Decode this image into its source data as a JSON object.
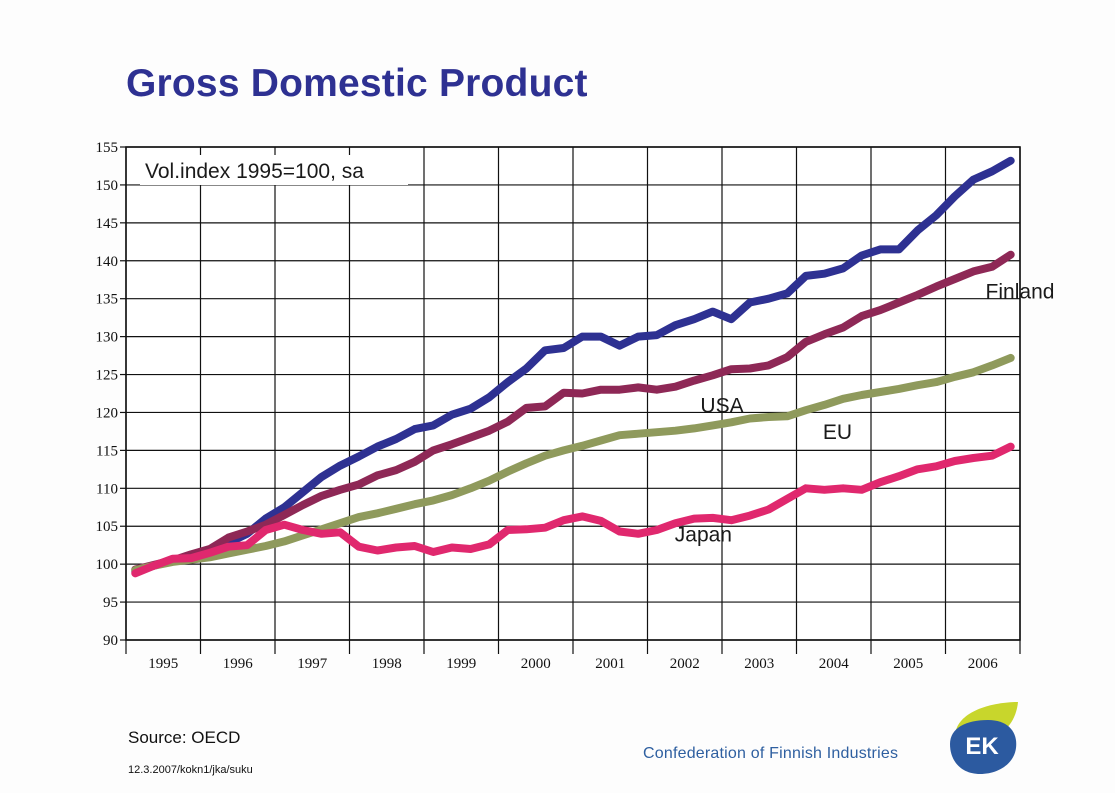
{
  "header": {
    "title": "Gross Domestic Product"
  },
  "footer": {
    "source": "Source: OECD",
    "footnote": "12.3.2007/kokn1/jka/suku",
    "organization": "Confederation of Finnish Industries",
    "logo_text": "EK"
  },
  "chart_data": {
    "type": "line",
    "title": "",
    "xlabel": "",
    "ylabel": "",
    "annotation": "Vol.index 1995=100, sa",
    "x_categories": [
      "1995",
      "1996",
      "1997",
      "1998",
      "1999",
      "2000",
      "2001",
      "2002",
      "2003",
      "2004",
      "2005",
      "2006"
    ],
    "x_range": [
      1995.0,
      2007.0
    ],
    "ylim": [
      90,
      155
    ],
    "yticks": [
      90,
      95,
      100,
      105,
      110,
      115,
      120,
      125,
      130,
      135,
      140,
      145,
      150,
      155
    ],
    "grid": true,
    "legend": "inline labels",
    "series": [
      {
        "name": "Finland",
        "color": "#2e3192",
        "label_at": [
          2007.0,
          135.0
        ],
        "points": [
          [
            1995.125,
            99
          ],
          [
            1995.375,
            99.8
          ],
          [
            1995.625,
            100.5
          ],
          [
            1995.875,
            101
          ],
          [
            1996.125,
            101.5
          ],
          [
            1996.375,
            102.8
          ],
          [
            1996.625,
            104
          ],
          [
            1996.875,
            106
          ],
          [
            1997.125,
            107.5
          ],
          [
            1997.375,
            109.5
          ],
          [
            1997.625,
            111.5
          ],
          [
            1997.875,
            113
          ],
          [
            1998.125,
            114.2
          ],
          [
            1998.375,
            115.5
          ],
          [
            1998.625,
            116.5
          ],
          [
            1998.875,
            117.8
          ],
          [
            1999.125,
            118.3
          ],
          [
            1999.375,
            119.7
          ],
          [
            1999.625,
            120.5
          ],
          [
            1999.875,
            122
          ],
          [
            2000.125,
            124
          ],
          [
            2000.375,
            125.8
          ],
          [
            2000.625,
            128.2
          ],
          [
            2000.875,
            128.5
          ],
          [
            2001.125,
            130
          ],
          [
            2001.375,
            130
          ],
          [
            2001.625,
            128.8
          ],
          [
            2001.875,
            130
          ],
          [
            2002.125,
            130.2
          ],
          [
            2002.375,
            131.5
          ],
          [
            2002.625,
            132.3
          ],
          [
            2002.875,
            133.3
          ],
          [
            2003.125,
            132.3
          ],
          [
            2003.375,
            134.5
          ],
          [
            2003.625,
            135
          ],
          [
            2003.875,
            135.7
          ],
          [
            2004.125,
            138
          ],
          [
            2004.375,
            138.3
          ],
          [
            2004.625,
            139
          ],
          [
            2004.875,
            140.7
          ],
          [
            2005.125,
            141.5
          ],
          [
            2005.375,
            141.5
          ],
          [
            2005.625,
            144
          ],
          [
            2005.875,
            146
          ],
          [
            2006.125,
            148.5
          ],
          [
            2006.375,
            150.7
          ],
          [
            2006.625,
            151.8
          ],
          [
            2006.875,
            153.2
          ]
        ]
      },
      {
        "name": "USA",
        "color": "#8e2856",
        "label_at": [
          2003.0,
          120.0
        ],
        "points": [
          [
            1995.125,
            99.3
          ],
          [
            1995.375,
            99.9
          ],
          [
            1995.625,
            100.5
          ],
          [
            1995.875,
            101.3
          ],
          [
            1996.125,
            102
          ],
          [
            1996.375,
            103.5
          ],
          [
            1996.625,
            104.3
          ],
          [
            1996.875,
            105.2
          ],
          [
            1997.125,
            106.5
          ],
          [
            1997.375,
            107.8
          ],
          [
            1997.625,
            109
          ],
          [
            1997.875,
            109.8
          ],
          [
            1998.125,
            110.5
          ],
          [
            1998.375,
            111.7
          ],
          [
            1998.625,
            112.4
          ],
          [
            1998.875,
            113.5
          ],
          [
            1999.125,
            115
          ],
          [
            1999.375,
            115.8
          ],
          [
            1999.625,
            116.7
          ],
          [
            1999.875,
            117.6
          ],
          [
            2000.125,
            118.8
          ],
          [
            2000.375,
            120.6
          ],
          [
            2000.625,
            120.8
          ],
          [
            2000.875,
            122.6
          ],
          [
            2001.125,
            122.5
          ],
          [
            2001.375,
            123
          ],
          [
            2001.625,
            123
          ],
          [
            2001.875,
            123.3
          ],
          [
            2002.125,
            123
          ],
          [
            2002.375,
            123.4
          ],
          [
            2002.625,
            124.2
          ],
          [
            2002.875,
            124.9
          ],
          [
            2003.125,
            125.7
          ],
          [
            2003.375,
            125.8
          ],
          [
            2003.625,
            126.2
          ],
          [
            2003.875,
            127.3
          ],
          [
            2004.125,
            129.3
          ],
          [
            2004.375,
            130.3
          ],
          [
            2004.625,
            131.2
          ],
          [
            2004.875,
            132.7
          ],
          [
            2005.125,
            133.5
          ],
          [
            2005.375,
            134.5
          ],
          [
            2005.625,
            135.5
          ],
          [
            2005.875,
            136.6
          ],
          [
            2006.125,
            137.6
          ],
          [
            2006.375,
            138.6
          ],
          [
            2006.625,
            139.2
          ],
          [
            2006.875,
            140.8
          ]
        ]
      },
      {
        "name": "EU",
        "color": "#8f9a5c",
        "label_at": [
          2004.55,
          116.5
        ],
        "points": [
          [
            1995.125,
            99.2
          ],
          [
            1995.375,
            99.8
          ],
          [
            1995.625,
            100.3
          ],
          [
            1995.875,
            100.6
          ],
          [
            1996.125,
            100.9
          ],
          [
            1996.375,
            101.4
          ],
          [
            1996.625,
            101.9
          ],
          [
            1996.875,
            102.4
          ],
          [
            1997.125,
            103
          ],
          [
            1997.375,
            103.8
          ],
          [
            1997.625,
            104.6
          ],
          [
            1997.875,
            105.4
          ],
          [
            1998.125,
            106.2
          ],
          [
            1998.375,
            106.7
          ],
          [
            1998.625,
            107.3
          ],
          [
            1998.875,
            107.9
          ],
          [
            1999.125,
            108.4
          ],
          [
            1999.375,
            109.1
          ],
          [
            1999.625,
            110
          ],
          [
            1999.875,
            111
          ],
          [
            2000.125,
            112.2
          ],
          [
            2000.375,
            113.3
          ],
          [
            2000.625,
            114.3
          ],
          [
            2000.875,
            115
          ],
          [
            2001.125,
            115.6
          ],
          [
            2001.375,
            116.3
          ],
          [
            2001.625,
            117
          ],
          [
            2001.875,
            117.2
          ],
          [
            2002.125,
            117.4
          ],
          [
            2002.375,
            117.6
          ],
          [
            2002.625,
            117.9
          ],
          [
            2002.875,
            118.3
          ],
          [
            2003.125,
            118.7
          ],
          [
            2003.375,
            119.2
          ],
          [
            2003.625,
            119.4
          ],
          [
            2003.875,
            119.5
          ],
          [
            2004.125,
            120.3
          ],
          [
            2004.375,
            121
          ],
          [
            2004.625,
            121.8
          ],
          [
            2004.875,
            122.3
          ],
          [
            2005.125,
            122.7
          ],
          [
            2005.375,
            123.1
          ],
          [
            2005.625,
            123.6
          ],
          [
            2005.875,
            124
          ],
          [
            2006.125,
            124.7
          ],
          [
            2006.375,
            125.3
          ],
          [
            2006.625,
            126.2
          ],
          [
            2006.875,
            127.2
          ]
        ]
      },
      {
        "name": "Japan",
        "color": "#e0286e",
        "label_at": [
          2002.75,
          103.0
        ],
        "points": [
          [
            1995.125,
            98.8
          ],
          [
            1995.375,
            99.8
          ],
          [
            1995.625,
            100.7
          ],
          [
            1995.875,
            100.8
          ],
          [
            1996.125,
            101.5
          ],
          [
            1996.375,
            102.3
          ],
          [
            1996.625,
            102.5
          ],
          [
            1996.875,
            104.5
          ],
          [
            1997.125,
            105.2
          ],
          [
            1997.375,
            104.5
          ],
          [
            1997.625,
            104
          ],
          [
            1997.875,
            104.2
          ],
          [
            1998.125,
            102.3
          ],
          [
            1998.375,
            101.8
          ],
          [
            1998.625,
            102.2
          ],
          [
            1998.875,
            102.4
          ],
          [
            1999.125,
            101.6
          ],
          [
            1999.375,
            102.2
          ],
          [
            1999.625,
            102
          ],
          [
            1999.875,
            102.6
          ],
          [
            2000.125,
            104.5
          ],
          [
            2000.375,
            104.6
          ],
          [
            2000.625,
            104.8
          ],
          [
            2000.875,
            105.8
          ],
          [
            2001.125,
            106.3
          ],
          [
            2001.375,
            105.7
          ],
          [
            2001.625,
            104.3
          ],
          [
            2001.875,
            104
          ],
          [
            2002.125,
            104.5
          ],
          [
            2002.375,
            105.4
          ],
          [
            2002.625,
            106
          ],
          [
            2002.875,
            106.1
          ],
          [
            2003.125,
            105.8
          ],
          [
            2003.375,
            106.4
          ],
          [
            2003.625,
            107.2
          ],
          [
            2003.875,
            108.6
          ],
          [
            2004.125,
            110
          ],
          [
            2004.375,
            109.8
          ],
          [
            2004.625,
            110
          ],
          [
            2004.875,
            109.8
          ],
          [
            2005.125,
            110.8
          ],
          [
            2005.375,
            111.6
          ],
          [
            2005.625,
            112.5
          ],
          [
            2005.875,
            112.9
          ],
          [
            2006.125,
            113.6
          ],
          [
            2006.375,
            114
          ],
          [
            2006.625,
            114.3
          ],
          [
            2006.875,
            115.5
          ]
        ]
      }
    ]
  }
}
